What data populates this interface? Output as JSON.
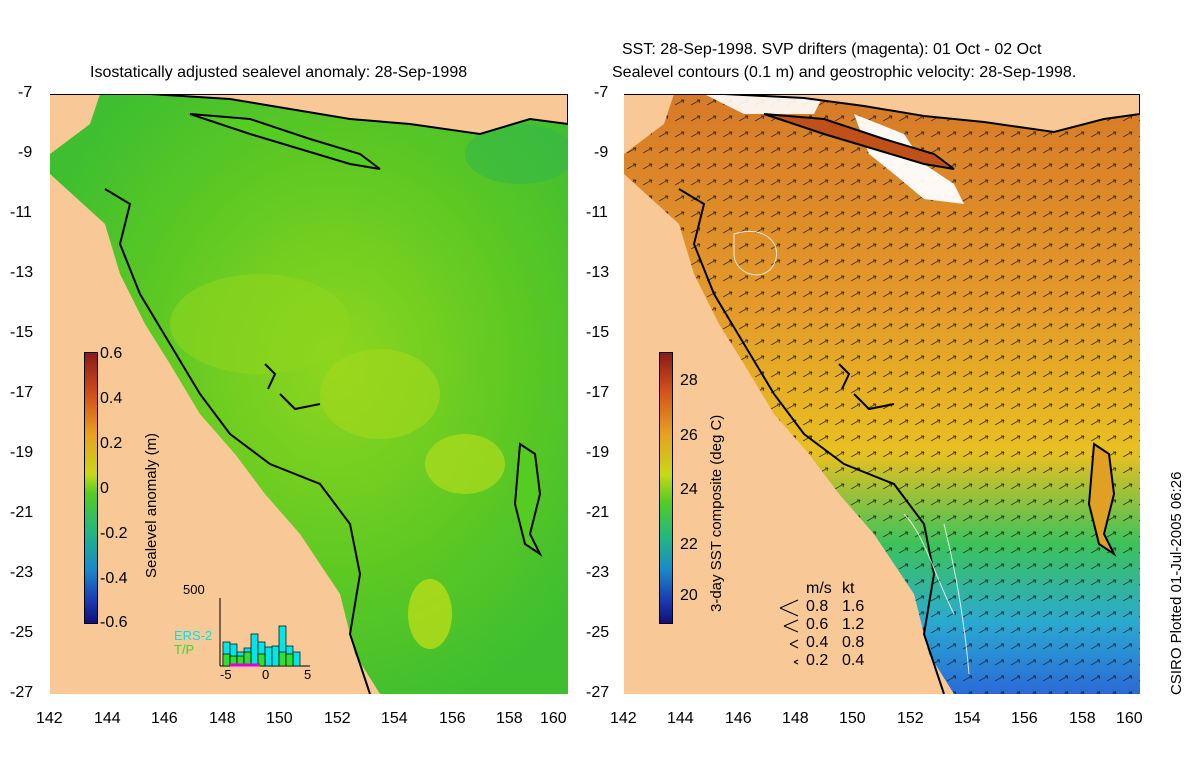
{
  "left_panel": {
    "title": "Isostatically adjusted sealevel anomaly: 28-Sep-1998",
    "colorbar_label": "Sealevel anomaly (m)",
    "colorbar_ticks": [
      "0.6",
      "0.4",
      "0.2",
      "0",
      "-0.2",
      "-0.4",
      "-0.6"
    ],
    "histogram": {
      "y_max_label": "500",
      "x_tick_labels": [
        "-5",
        "0",
        "5"
      ],
      "legend_ers": "ERS-2",
      "legend_tp": "T/P",
      "ers_color": "#00e5e5",
      "tp_color": "#33dd33"
    }
  },
  "right_panel": {
    "title_line1": "SST: 28-Sep-1998. SVP drifters (magenta): 01 Oct - 02 Oct",
    "title_line2": "Sealevel contours (0.1 m) and geostrophic velocity: 28-Sep-1998.",
    "colorbar_label": "3-day SST composite (deg C)",
    "colorbar_ticks": [
      "28",
      "26",
      "24",
      "22",
      "20"
    ],
    "velocity_legend": {
      "header_ms": "m/s",
      "header_kt": "kt",
      "rows": [
        {
          "ms": "0.8",
          "kt": "1.6"
        },
        {
          "ms": "0.6",
          "kt": "1.2"
        },
        {
          "ms": "0.4",
          "kt": "0.8"
        },
        {
          "ms": "0.2",
          "kt": "0.4"
        }
      ]
    }
  },
  "axes": {
    "lat_labels": [
      "-7",
      "-9",
      "-11",
      "-13",
      "-15",
      "-17",
      "-19",
      "-21",
      "-23",
      "-25",
      "-27"
    ],
    "lon_labels": [
      "142",
      "144",
      "146",
      "148",
      "150",
      "152",
      "154",
      "156",
      "158",
      "160"
    ],
    "lat_range": [
      -27,
      -7
    ],
    "lon_range": [
      142,
      160
    ]
  },
  "credit": "CSIRO Plotted 01-Jul-2005 06:26",
  "colors": {
    "land": "#f8c896",
    "sea_green": "#55cc22",
    "sst_orange": "#e08a2a",
    "sst_yellow": "#e8c020",
    "sst_blue": "#2a9ad0"
  }
}
